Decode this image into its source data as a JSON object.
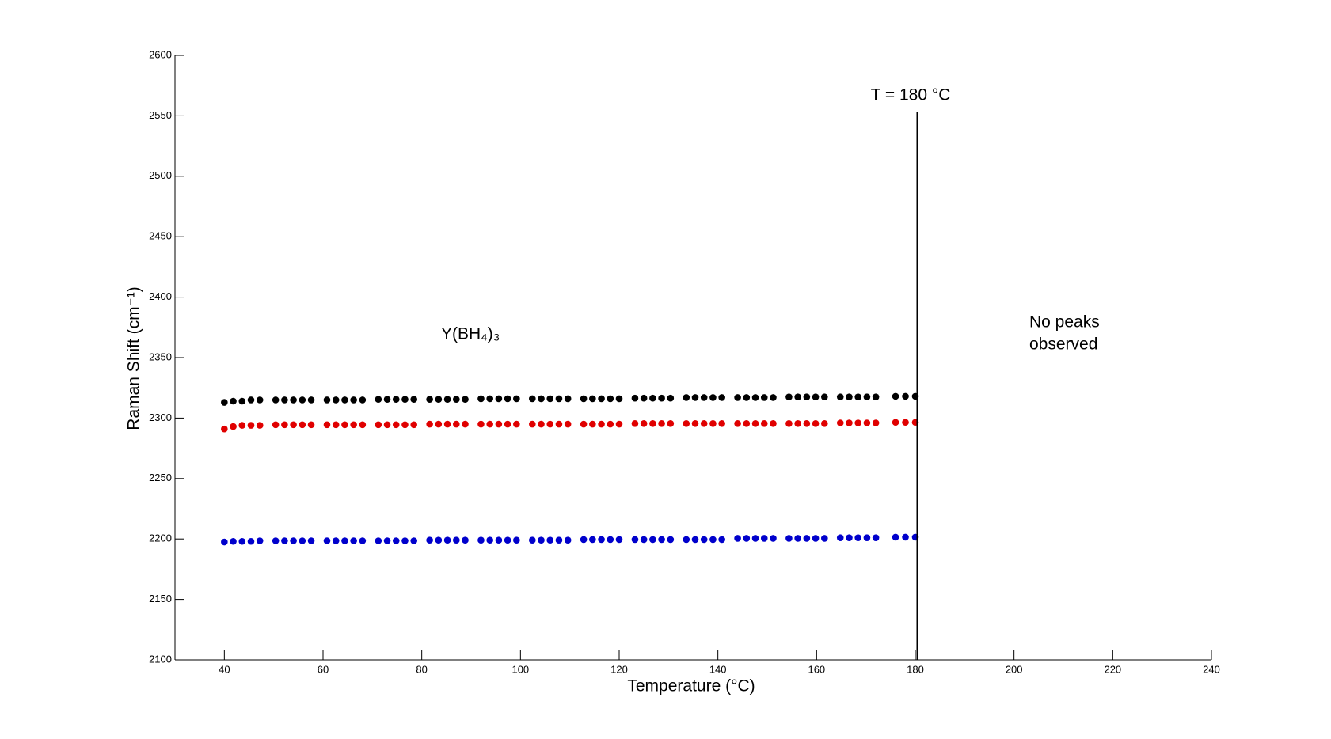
{
  "chart_data": {
    "type": "scatter",
    "xlabel": "Temperature (°C)",
    "ylabel": "Raman Shift (cm⁻¹)",
    "xlim": [
      30,
      240
    ],
    "xticks": [
      40,
      60,
      80,
      100,
      120,
      140,
      160,
      180,
      200,
      220,
      240
    ],
    "ylim": [
      2100,
      2600
    ],
    "yticks": [
      2100,
      2150,
      2200,
      2250,
      2300,
      2350,
      2400,
      2450,
      2500,
      2550,
      2600
    ],
    "x": [
      40,
      41.8,
      43.6,
      45.4,
      47.2,
      50.4,
      52.2,
      54,
      55.8,
      57.6,
      60.8,
      62.6,
      64.4,
      66.2,
      68,
      71.2,
      73,
      74.8,
      76.6,
      78.4,
      81.6,
      83.4,
      85.2,
      87,
      88.8,
      92,
      93.8,
      95.6,
      97.4,
      99.2,
      102.4,
      104.2,
      106,
      107.8,
      109.6,
      112.8,
      114.6,
      116.4,
      118.2,
      120,
      123.2,
      125,
      126.8,
      128.6,
      130.4,
      133.6,
      135.4,
      137.2,
      139,
      140.8,
      144,
      145.8,
      147.6,
      149.4,
      151.2,
      154.4,
      156.2,
      158,
      159.8,
      161.6,
      164.8,
      166.6,
      168.4,
      170.2,
      172,
      176,
      178,
      180
    ],
    "series": [
      {
        "color": "#000000",
        "values": [
          2313,
          2314,
          2314,
          2315,
          2315,
          2315,
          2315,
          2315,
          2315,
          2315,
          2315,
          2315,
          2315,
          2315,
          2315,
          2315.5,
          2315.5,
          2315.5,
          2315.5,
          2315.5,
          2315.5,
          2315.5,
          2315.5,
          2315.5,
          2315.5,
          2316,
          2316,
          2316,
          2316,
          2316,
          2316,
          2316,
          2316,
          2316,
          2316,
          2316,
          2316,
          2316,
          2316,
          2316,
          2316.5,
          2316.5,
          2316.5,
          2316.5,
          2316.5,
          2317,
          2317,
          2317,
          2317,
          2317,
          2317,
          2317,
          2317,
          2317,
          2317,
          2317.5,
          2317.5,
          2317.5,
          2317.5,
          2317.5,
          2317.5,
          2317.5,
          2317.5,
          2317.5,
          2317.5,
          2318,
          2318,
          2318
        ]
      },
      {
        "color": "#e00000",
        "values": [
          2291,
          2293,
          2294,
          2294,
          2294,
          2294.5,
          2294.5,
          2294.5,
          2294.5,
          2294.5,
          2294.5,
          2294.5,
          2294.5,
          2294.5,
          2294.5,
          2294.5,
          2294.5,
          2294.5,
          2294.5,
          2294.5,
          2295,
          2295,
          2295,
          2295,
          2295,
          2295,
          2295,
          2295,
          2295,
          2295,
          2295,
          2295,
          2295,
          2295,
          2295,
          2295,
          2295,
          2295,
          2295,
          2295,
          2295.5,
          2295.5,
          2295.5,
          2295.5,
          2295.5,
          2295.5,
          2295.5,
          2295.5,
          2295.5,
          2295.5,
          2295.5,
          2295.5,
          2295.5,
          2295.5,
          2295.5,
          2295.5,
          2295.5,
          2295.5,
          2295.5,
          2295.5,
          2296,
          2296,
          2296,
          2296,
          2296,
          2296.5,
          2296.5,
          2296.5
        ]
      },
      {
        "color": "#0000cc",
        "values": [
          2197.5,
          2198,
          2198,
          2198,
          2198.5,
          2198.5,
          2198.5,
          2198.5,
          2198.5,
          2198.5,
          2198.5,
          2198.5,
          2198.5,
          2198.5,
          2198.5,
          2198.5,
          2198.5,
          2198.5,
          2198.5,
          2198.5,
          2199,
          2199,
          2199,
          2199,
          2199,
          2199,
          2199,
          2199,
          2199,
          2199,
          2199,
          2199,
          2199,
          2199,
          2199,
          2199.5,
          2199.5,
          2199.5,
          2199.5,
          2199.5,
          2199.5,
          2199.5,
          2199.5,
          2199.5,
          2199.5,
          2199.5,
          2199.5,
          2199.5,
          2199.5,
          2199.5,
          2200.5,
          2200.5,
          2200.5,
          2200.5,
          2200.5,
          2200.5,
          2200.5,
          2200.5,
          2200.5,
          2200.5,
          2201,
          2201,
          2201,
          2201,
          2201,
          2201.5,
          2201.5,
          2201.5
        ]
      }
    ],
    "vline": {
      "x": 180.4,
      "ylim": [
        2100,
        2553
      ],
      "label": "T = 180 °C"
    },
    "annotations": [
      "Y(BH₄)₃",
      "No peaks",
      "observed"
    ]
  }
}
